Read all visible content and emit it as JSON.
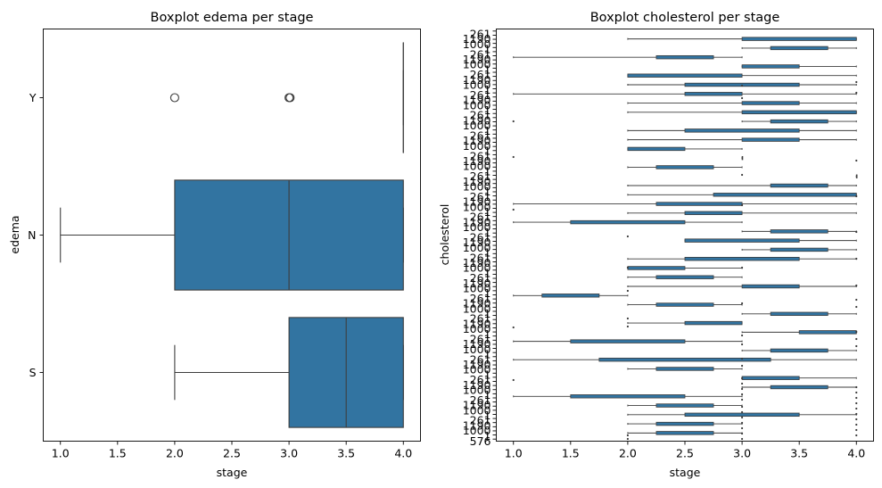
{
  "chart_data": [
    {
      "type": "boxplot",
      "orientation": "horizontal",
      "title": "Boxplot edema per stage",
      "xlabel": "stage",
      "ylabel": "edema",
      "xlim": [
        0.85,
        4.15
      ],
      "xticks": [
        "1.0",
        "1.5",
        "2.0",
        "2.5",
        "3.0",
        "3.5",
        "4.0"
      ],
      "categories": [
        "Y",
        "N",
        "S"
      ],
      "color": "#3274a1",
      "boxes": [
        {
          "category": "Y",
          "whisker_low": 4.0,
          "q1": 4.0,
          "median": 4.0,
          "q3": 4.0,
          "whisker_high": 4.0,
          "outliers": [
            2.0,
            3.0
          ]
        },
        {
          "category": "N",
          "whisker_low": 1.0,
          "q1": 2.0,
          "median": 3.0,
          "q3": 4.0,
          "whisker_high": 4.0,
          "outliers": []
        },
        {
          "category": "S",
          "whisker_low": 2.0,
          "q1": 3.0,
          "median": 3.5,
          "q3": 4.0,
          "whisker_high": 4.0,
          "outliers": []
        }
      ]
    },
    {
      "type": "boxplot",
      "orientation": "horizontal",
      "title": "Boxplot cholesterol per stage",
      "xlabel": "stage",
      "ylabel": "cholesterol",
      "xlim": [
        0.85,
        4.15
      ],
      "xticks": [
        "1.0",
        "1.5",
        "2.0",
        "2.5",
        "3.0",
        "3.5",
        "4.0"
      ],
      "color": "#3274a1",
      "visible_tick_labels": [
        "261",
        "1190",
        "1000",
        "1"
      ],
      "bottom_tick_label": "576",
      "dense_category_count": 100,
      "rows": [
        {
          "low": 2.0,
          "q1": 3.0,
          "q3": 4.0,
          "high": 4.0
        },
        {
          "low": 3.0,
          "q1": 3.25,
          "q3": 3.75,
          "high": 4.0
        },
        {
          "low": 1.0,
          "q1": 2.25,
          "q3": 2.75,
          "high": 3.0
        },
        {
          "low": 3.0,
          "q1": 3.0,
          "q3": 3.5,
          "high": 4.0
        },
        {
          "low": 2.0,
          "q1": 2.0,
          "q3": 3.0,
          "high": 4.0
        },
        {
          "low": 2.0,
          "q1": 2.5,
          "q3": 3.5,
          "high": 4.0
        },
        {
          "low": 1.0,
          "q1": 2.5,
          "q3": 3.0,
          "high": 4.0
        },
        {
          "low": 2.0,
          "q1": 3.0,
          "q3": 3.5,
          "high": 4.0
        },
        {
          "low": 2.0,
          "q1": 3.0,
          "q3": 4.0,
          "high": 4.0
        },
        {
          "low": 3.0,
          "q1": 3.25,
          "q3": 3.75,
          "high": 4.0
        },
        {
          "low": 2.0,
          "q1": 2.5,
          "q3": 3.5,
          "high": 4.0
        },
        {
          "low": 2.0,
          "q1": 3.0,
          "q3": 3.5,
          "high": 4.0
        },
        {
          "low": 2.0,
          "q1": 2.0,
          "q3": 2.5,
          "high": 3.0
        },
        {
          "low": 3.0,
          "q1": 3.0,
          "q3": 3.0,
          "high": 3.0
        },
        {
          "low": 2.0,
          "q1": 2.25,
          "q3": 2.75,
          "high": 3.0
        },
        {
          "low": 4.0,
          "q1": 4.0,
          "q3": 4.0,
          "high": 4.0
        },
        {
          "low": 2.0,
          "q1": 3.25,
          "q3": 3.75,
          "high": 4.0
        },
        {
          "low": 2.0,
          "q1": 2.75,
          "q3": 4.0,
          "high": 4.0
        },
        {
          "low": 1.0,
          "q1": 2.25,
          "q3": 3.0,
          "high": 4.0
        },
        {
          "low": 2.0,
          "q1": 2.5,
          "q3": 3.0,
          "high": 4.0
        },
        {
          "low": 1.0,
          "q1": 1.5,
          "q3": 2.5,
          "high": 3.0
        },
        {
          "low": 3.0,
          "q1": 3.25,
          "q3": 3.75,
          "high": 4.0
        },
        {
          "low": 2.5,
          "q1": 2.5,
          "q3": 3.5,
          "high": 4.0
        },
        {
          "low": 3.0,
          "q1": 3.25,
          "q3": 3.75,
          "high": 4.0
        },
        {
          "low": 2.0,
          "q1": 2.5,
          "q3": 3.5,
          "high": 4.0
        },
        {
          "low": 2.0,
          "q1": 2.0,
          "q3": 2.5,
          "high": 3.0
        },
        {
          "low": 2.0,
          "q1": 2.25,
          "q3": 2.75,
          "high": 3.0
        },
        {
          "low": 2.0,
          "q1": 3.0,
          "q3": 3.5,
          "high": 4.0
        },
        {
          "low": 1.0,
          "q1": 1.25,
          "q3": 1.75,
          "high": 2.0
        },
        {
          "low": 2.0,
          "q1": 2.25,
          "q3": 2.75,
          "high": 3.0
        },
        {
          "low": 3.0,
          "q1": 3.25,
          "q3": 3.75,
          "high": 4.0
        },
        {
          "low": 2.0,
          "q1": 2.5,
          "q3": 3.0,
          "high": 3.0
        },
        {
          "low": 3.0,
          "q1": 3.5,
          "q3": 4.0,
          "high": 4.0
        },
        {
          "low": 1.0,
          "q1": 1.5,
          "q3": 2.5,
          "high": 3.0
        },
        {
          "low": 3.0,
          "q1": 3.25,
          "q3": 3.75,
          "high": 4.0
        },
        {
          "low": 1.0,
          "q1": 1.75,
          "q3": 3.25,
          "high": 4.0
        },
        {
          "low": 2.0,
          "q1": 2.25,
          "q3": 2.75,
          "high": 3.0
        },
        {
          "low": 3.0,
          "q1": 3.0,
          "q3": 3.5,
          "high": 4.0
        },
        {
          "low": 3.0,
          "q1": 3.25,
          "q3": 3.75,
          "high": 4.0
        },
        {
          "low": 1.0,
          "q1": 1.5,
          "q3": 2.5,
          "high": 3.0
        },
        {
          "low": 2.0,
          "q1": 2.25,
          "q3": 2.75,
          "high": 3.0
        },
        {
          "low": 2.0,
          "q1": 2.5,
          "q3": 3.5,
          "high": 4.0
        },
        {
          "low": 2.0,
          "q1": 2.25,
          "q3": 2.75,
          "high": 3.0
        },
        {
          "low": 2.0,
          "q1": 2.25,
          "q3": 2.75,
          "high": 3.0
        }
      ]
    }
  ]
}
